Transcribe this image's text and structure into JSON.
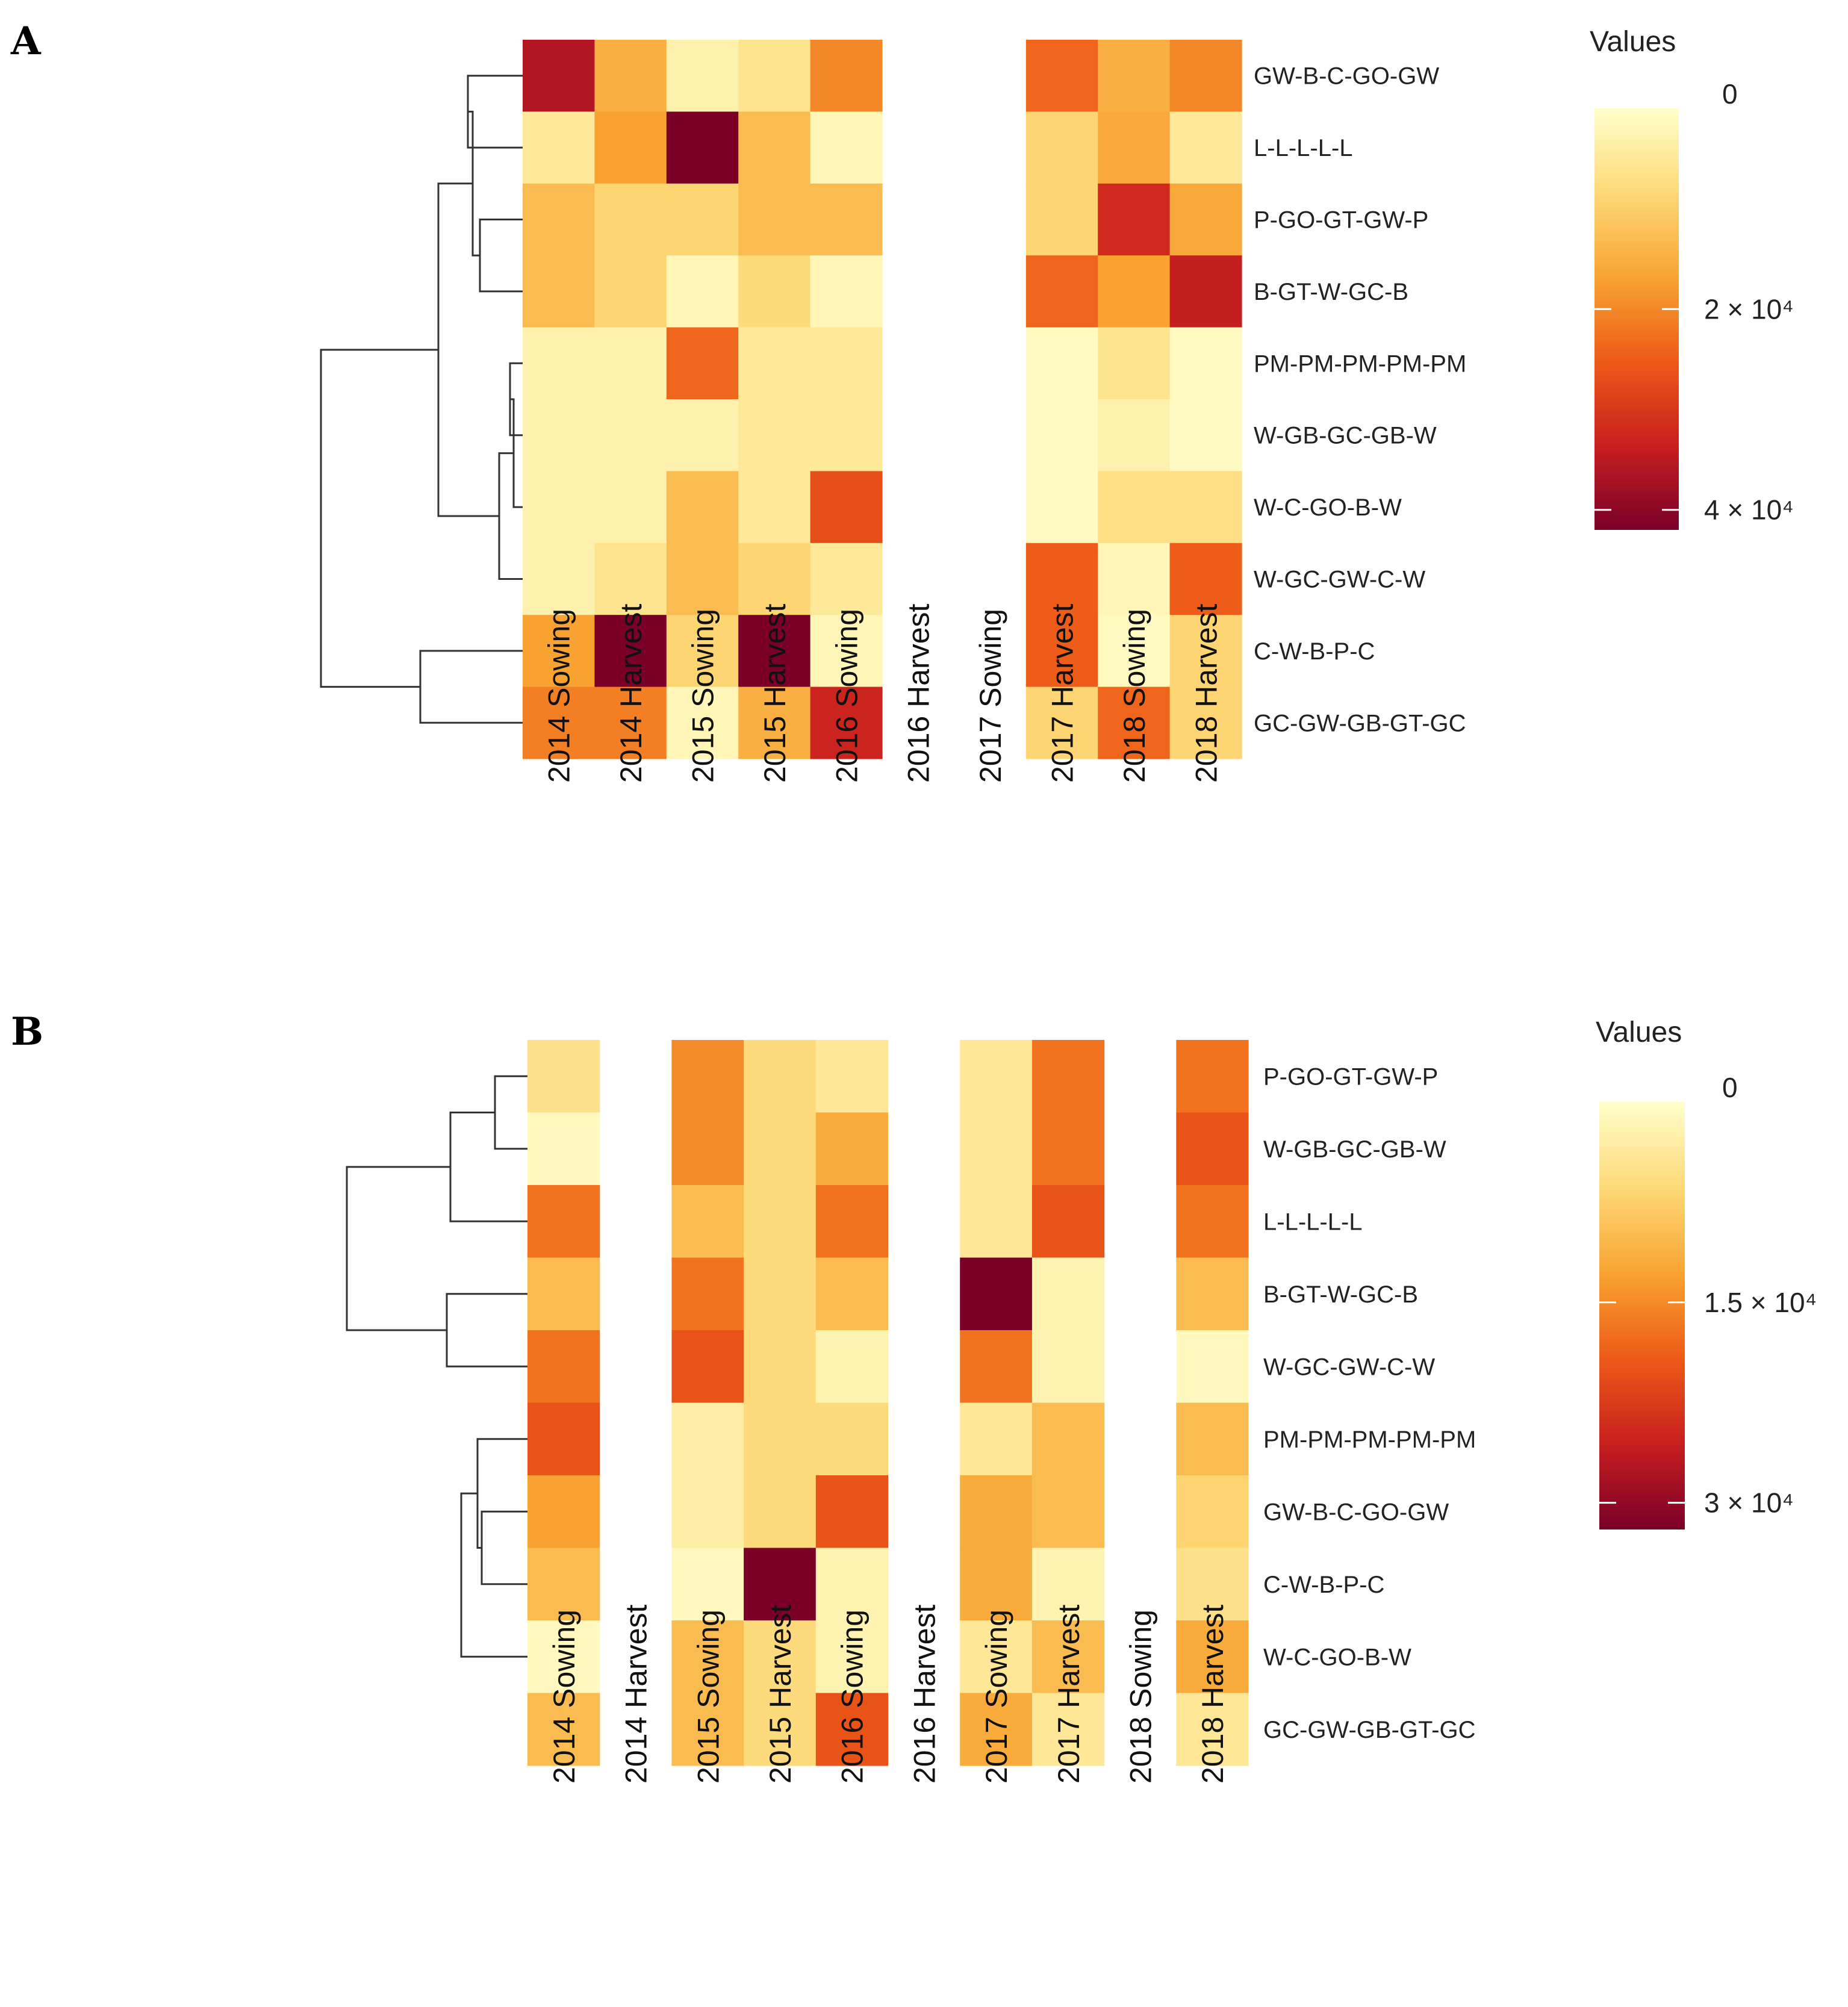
{
  "colors": {
    "stops": [
      "#FFFFCC",
      "#FDD977",
      "#F8A432",
      "#ED5A17",
      "#C81F1F",
      "#7A0028"
    ]
  },
  "chart_data": [
    {
      "type": "heatmap",
      "panel": "A",
      "legend_title": "Values",
      "legend_ticks": [
        {
          "label": "0",
          "value": 0
        },
        {
          "label": "2 × 10⁴",
          "value": 20000
        },
        {
          "label": "4 × 10⁴",
          "value": 40000
        }
      ],
      "legend_position": "top-right",
      "value_range": [
        0,
        42000
      ],
      "columns": [
        "2014 Sowing",
        "2014 Harvest",
        "2015 Sowing",
        "2015 Harvest",
        "2016 Sowing",
        "2016 Harvest",
        "2017 Sowing",
        "2017 Harvest",
        "2018 Sowing",
        "2018 Harvest"
      ],
      "rows": [
        "GW-B-C-GO-GW",
        "L-L-L-L-L",
        "P-GO-GT-GW-P",
        "B-GT-W-GC-B",
        "PM-PM-PM-PM-PM",
        "W-GB-GC-GB-W",
        "W-C-GO-B-W",
        "W-GC-GW-C-W",
        "C-W-B-P-C",
        "GC-GW-GB-GT-GC"
      ],
      "values": [
        [
          36000,
          15000,
          3000,
          6000,
          20000,
          null,
          null,
          24000,
          15000,
          20000
        ],
        [
          5000,
          17000,
          42000,
          13000,
          2000,
          null,
          null,
          9000,
          16000,
          5000
        ],
        [
          13000,
          9000,
          9000,
          13000,
          13000,
          null,
          null,
          9000,
          32000,
          16000
        ],
        [
          13000,
          9000,
          2000,
          8000,
          2000,
          null,
          null,
          24000,
          17000,
          34000
        ],
        [
          3000,
          3000,
          24000,
          5000,
          5000,
          null,
          null,
          1000,
          6000,
          1000
        ],
        [
          3000,
          3000,
          3000,
          5000,
          5000,
          null,
          null,
          1000,
          3000,
          1000
        ],
        [
          3000,
          3000,
          13000,
          5000,
          27000,
          null,
          null,
          1000,
          7000,
          7000
        ],
        [
          3000,
          6000,
          13000,
          9000,
          5000,
          null,
          null,
          25000,
          2000,
          25000
        ],
        [
          17000,
          42000,
          9000,
          42000,
          2000,
          null,
          null,
          25000,
          1000,
          9000
        ],
        [
          21000,
          21000,
          2000,
          15000,
          33000,
          null,
          null,
          9000,
          24000,
          9000
        ]
      ]
    },
    {
      "type": "heatmap",
      "panel": "B",
      "legend_title": "Values",
      "legend_ticks": [
        {
          "label": "0",
          "value": 0
        },
        {
          "label": "1.5 × 10⁴",
          "value": 15000
        },
        {
          "label": "3 × 10⁴",
          "value": 30000
        }
      ],
      "legend_position": "top-right",
      "value_range": [
        0,
        32000
      ],
      "columns": [
        "2014 Sowing",
        "2014 Harvest",
        "2015 Sowing",
        "2015 Harvest",
        "2016 Sowing",
        "2016 Harvest",
        "2017 Sowing",
        "2017 Harvest",
        "2018 Sowing",
        "2018 Harvest"
      ],
      "rows": [
        "P-GO-GT-GW-P",
        "W-GB-GC-GB-W",
        "L-L-L-L-L",
        "B-GT-W-GC-B",
        "W-GC-GW-C-W",
        "PM-PM-PM-PM-PM",
        "GW-B-C-GO-GW",
        "C-W-B-P-C",
        "W-C-GO-B-W",
        "GC-GW-GB-GT-GC"
      ],
      "values": [
        [
          5000,
          null,
          15000,
          6000,
          4000,
          null,
          4000,
          17000,
          null,
          17000
        ],
        [
          1000,
          null,
          15000,
          6000,
          12000,
          null,
          4000,
          17000,
          null,
          20000
        ],
        [
          17000,
          null,
          10000,
          6000,
          17000,
          null,
          4000,
          20000,
          null,
          17000
        ],
        [
          10000,
          null,
          17000,
          6000,
          10000,
          null,
          32000,
          2000,
          null,
          10000
        ],
        [
          17000,
          null,
          20000,
          6000,
          2000,
          null,
          17000,
          2000,
          null,
          1000
        ],
        [
          20000,
          null,
          3000,
          6000,
          6000,
          null,
          4000,
          10000,
          null,
          10000
        ],
        [
          13000,
          null,
          3000,
          6000,
          20000,
          null,
          12000,
          10000,
          null,
          7000
        ],
        [
          10000,
          null,
          1000,
          32000,
          2000,
          null,
          12000,
          2000,
          null,
          5000
        ],
        [
          1000,
          null,
          10000,
          6000,
          2000,
          null,
          4000,
          10000,
          null,
          12000
        ],
        [
          10000,
          null,
          10000,
          6000,
          20000,
          null,
          12000,
          4000,
          null,
          4000
        ]
      ]
    }
  ]
}
